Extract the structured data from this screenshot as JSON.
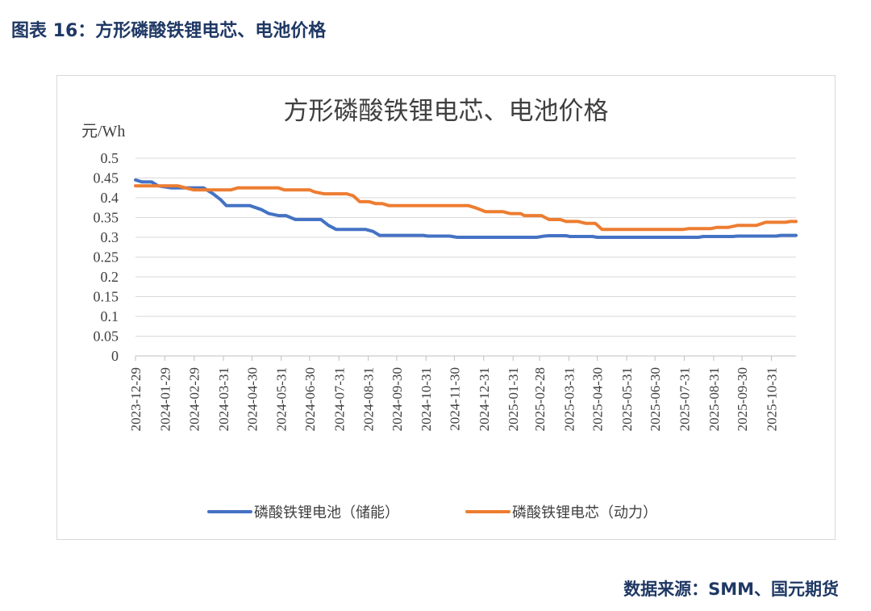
{
  "header": {
    "caption": "图表 16：方形磷酸铁锂电芯、电池价格"
  },
  "footer": {
    "source": "数据来源：SMM、国元期货"
  },
  "colors": {
    "caption": "#1f3864",
    "storage": "#4472c4",
    "power": "#ed7d31",
    "grid": "#d9d9d9"
  },
  "chart_data": {
    "type": "line",
    "title": "方形磷酸铁锂电芯、电池价格",
    "ylabel": "元/Wh",
    "xlabel": "",
    "ylim": [
      0,
      0.5
    ],
    "yticks": [
      "0",
      "0.05",
      "0.1",
      "0.15",
      "0.2",
      "0.25",
      "0.3",
      "0.35",
      "0.4",
      "0.45",
      "0.5"
    ],
    "xlim": [
      "2023-12-29",
      "2025-11-26"
    ],
    "xticks": [
      "2023-12-29",
      "2024-01-29",
      "2024-02-29",
      "2024-03-31",
      "2024-04-30",
      "2024-05-31",
      "2024-06-30",
      "2024-07-31",
      "2024-08-31",
      "2024-09-30",
      "2024-10-31",
      "2024-11-30",
      "2024-12-31",
      "2025-01-31",
      "2025-02-28",
      "2025-03-31",
      "2025-04-30",
      "2025-05-31",
      "2025-06-30",
      "2025-07-31",
      "2025-08-31",
      "2025-09-30",
      "2025-10-31"
    ],
    "legend_position": "bottom",
    "grid": true,
    "series": [
      {
        "name": "磷酸铁锂电池（储能）",
        "color": "#4472c4",
        "points": [
          [
            "2023-12-29",
            0.445
          ],
          [
            "2024-01-05",
            0.44
          ],
          [
            "2024-01-15",
            0.44
          ],
          [
            "2024-01-22",
            0.43
          ],
          [
            "2024-02-05",
            0.425
          ],
          [
            "2024-03-10",
            0.425
          ],
          [
            "2024-03-20",
            0.41
          ],
          [
            "2024-03-28",
            0.395
          ],
          [
            "2024-04-03",
            0.38
          ],
          [
            "2024-04-28",
            0.38
          ],
          [
            "2024-05-10",
            0.37
          ],
          [
            "2024-05-18",
            0.36
          ],
          [
            "2024-05-28",
            0.355
          ],
          [
            "2024-06-05",
            0.355
          ],
          [
            "2024-06-15",
            0.345
          ],
          [
            "2024-07-12",
            0.345
          ],
          [
            "2024-07-20",
            0.33
          ],
          [
            "2024-07-28",
            0.32
          ],
          [
            "2024-08-28",
            0.32
          ],
          [
            "2024-09-05",
            0.315
          ],
          [
            "2024-09-12",
            0.305
          ],
          [
            "2024-10-28",
            0.305
          ],
          [
            "2024-11-02",
            0.303
          ],
          [
            "2024-11-25",
            0.303
          ],
          [
            "2024-12-03",
            0.3
          ],
          [
            "2025-02-25",
            0.3
          ],
          [
            "2025-03-05",
            0.303
          ],
          [
            "2025-03-10",
            0.304
          ],
          [
            "2025-03-28",
            0.304
          ],
          [
            "2025-04-01",
            0.302
          ],
          [
            "2025-04-25",
            0.302
          ],
          [
            "2025-04-30",
            0.3
          ],
          [
            "2025-08-15",
            0.3
          ],
          [
            "2025-08-20",
            0.302
          ],
          [
            "2025-09-20",
            0.302
          ],
          [
            "2025-09-25",
            0.303
          ],
          [
            "2025-11-05",
            0.303
          ],
          [
            "2025-11-10",
            0.305
          ],
          [
            "2025-11-26",
            0.305
          ]
        ]
      },
      {
        "name": "磷酸铁锂电芯（动力）",
        "color": "#ed7d31",
        "points": [
          [
            "2023-12-29",
            0.43
          ],
          [
            "2024-02-12",
            0.43
          ],
          [
            "2024-02-20",
            0.425
          ],
          [
            "2024-02-28",
            0.42
          ],
          [
            "2024-03-31",
            0.42
          ],
          [
            "2024-04-08",
            0.42
          ],
          [
            "2024-04-15",
            0.425
          ],
          [
            "2024-05-28",
            0.425
          ],
          [
            "2024-06-03",
            0.42
          ],
          [
            "2024-06-30",
            0.42
          ],
          [
            "2024-07-05",
            0.415
          ],
          [
            "2024-07-15",
            0.41
          ],
          [
            "2024-08-08",
            0.41
          ],
          [
            "2024-08-15",
            0.405
          ],
          [
            "2024-08-22",
            0.39
          ],
          [
            "2024-09-01",
            0.39
          ],
          [
            "2024-09-08",
            0.385
          ],
          [
            "2024-09-15",
            0.385
          ],
          [
            "2024-09-22",
            0.38
          ],
          [
            "2024-12-15",
            0.38
          ],
          [
            "2024-12-22",
            0.375
          ],
          [
            "2025-01-02",
            0.365
          ],
          [
            "2025-01-20",
            0.365
          ],
          [
            "2025-01-28",
            0.36
          ],
          [
            "2025-02-08",
            0.36
          ],
          [
            "2025-02-12",
            0.355
          ],
          [
            "2025-03-02",
            0.355
          ],
          [
            "2025-03-10",
            0.345
          ],
          [
            "2025-03-22",
            0.345
          ],
          [
            "2025-03-28",
            0.34
          ],
          [
            "2025-04-10",
            0.34
          ],
          [
            "2025-04-18",
            0.335
          ],
          [
            "2025-04-28",
            0.335
          ],
          [
            "2025-05-05",
            0.32
          ],
          [
            "2025-07-30",
            0.32
          ],
          [
            "2025-08-05",
            0.322
          ],
          [
            "2025-08-28",
            0.322
          ],
          [
            "2025-09-03",
            0.325
          ],
          [
            "2025-09-15",
            0.325
          ],
          [
            "2025-09-25",
            0.33
          ],
          [
            "2025-10-15",
            0.33
          ],
          [
            "2025-10-25",
            0.338
          ],
          [
            "2025-11-15",
            0.338
          ],
          [
            "2025-11-20",
            0.34
          ],
          [
            "2025-11-26",
            0.34
          ]
        ]
      }
    ]
  }
}
